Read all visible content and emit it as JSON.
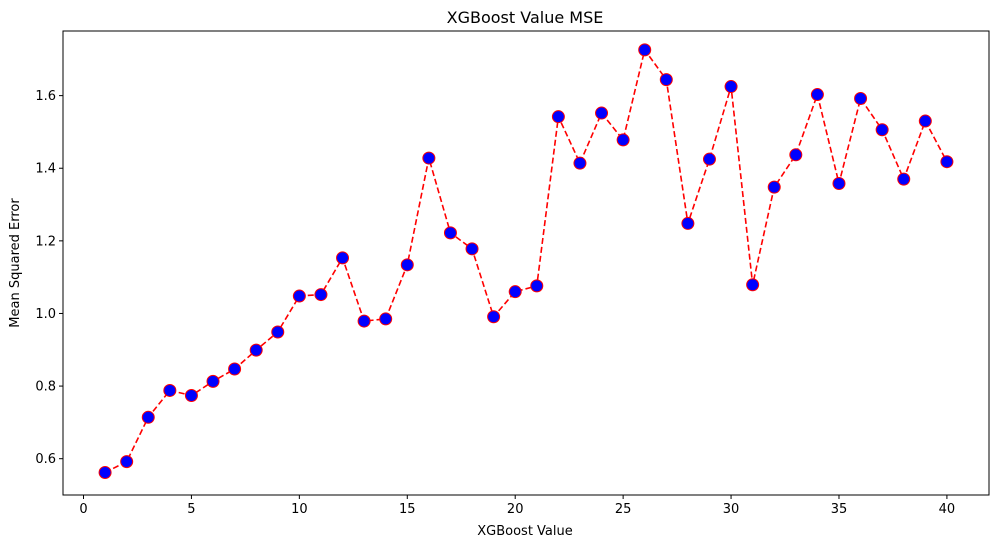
{
  "chart_data": {
    "type": "line",
    "title": "XGBoost Value MSE",
    "xlabel": "XGBoost Value",
    "ylabel": "Mean Squared Error",
    "xlim": [
      -0.95,
      41.95
    ],
    "ylim": [
      0.5,
      1.778
    ],
    "xticks": [
      0,
      5,
      10,
      15,
      20,
      25,
      30,
      35,
      40
    ],
    "xtick_labels": [
      "0",
      "5",
      "10",
      "15",
      "20",
      "25",
      "30",
      "35",
      "40"
    ],
    "yticks": [
      0.6,
      0.8,
      1.0,
      1.2,
      1.4,
      1.6
    ],
    "ytick_labels": [
      "0.6",
      "0.8",
      "1.0",
      "1.2",
      "1.4",
      "1.6"
    ],
    "grid": false,
    "series": [
      {
        "x": [
          1,
          2,
          3,
          4,
          5,
          6,
          7,
          8,
          9,
          10,
          11,
          12,
          13,
          14,
          15,
          16,
          17,
          18,
          19,
          20,
          21,
          22,
          23,
          24,
          25,
          26,
          27,
          28,
          29,
          30,
          31,
          32,
          33,
          34,
          35,
          36,
          37,
          38,
          39,
          40
        ],
        "values": [
          0.562,
          0.592,
          0.714,
          0.788,
          0.774,
          0.813,
          0.847,
          0.899,
          0.949,
          1.048,
          1.052,
          1.153,
          0.979,
          0.985,
          1.134,
          1.428,
          1.222,
          1.178,
          0.991,
          1.06,
          1.076,
          1.542,
          1.414,
          1.552,
          1.478,
          1.726,
          1.644,
          1.248,
          1.425,
          1.625,
          1.079,
          1.348,
          1.437,
          1.603,
          1.358,
          1.592,
          1.506,
          1.37,
          1.53,
          1.418
        ],
        "line_color": "#ff0000",
        "line_style": "dashed",
        "marker": "circle",
        "marker_face_color": "#0000ff",
        "marker_edge_color": "#ff0000"
      }
    ]
  }
}
